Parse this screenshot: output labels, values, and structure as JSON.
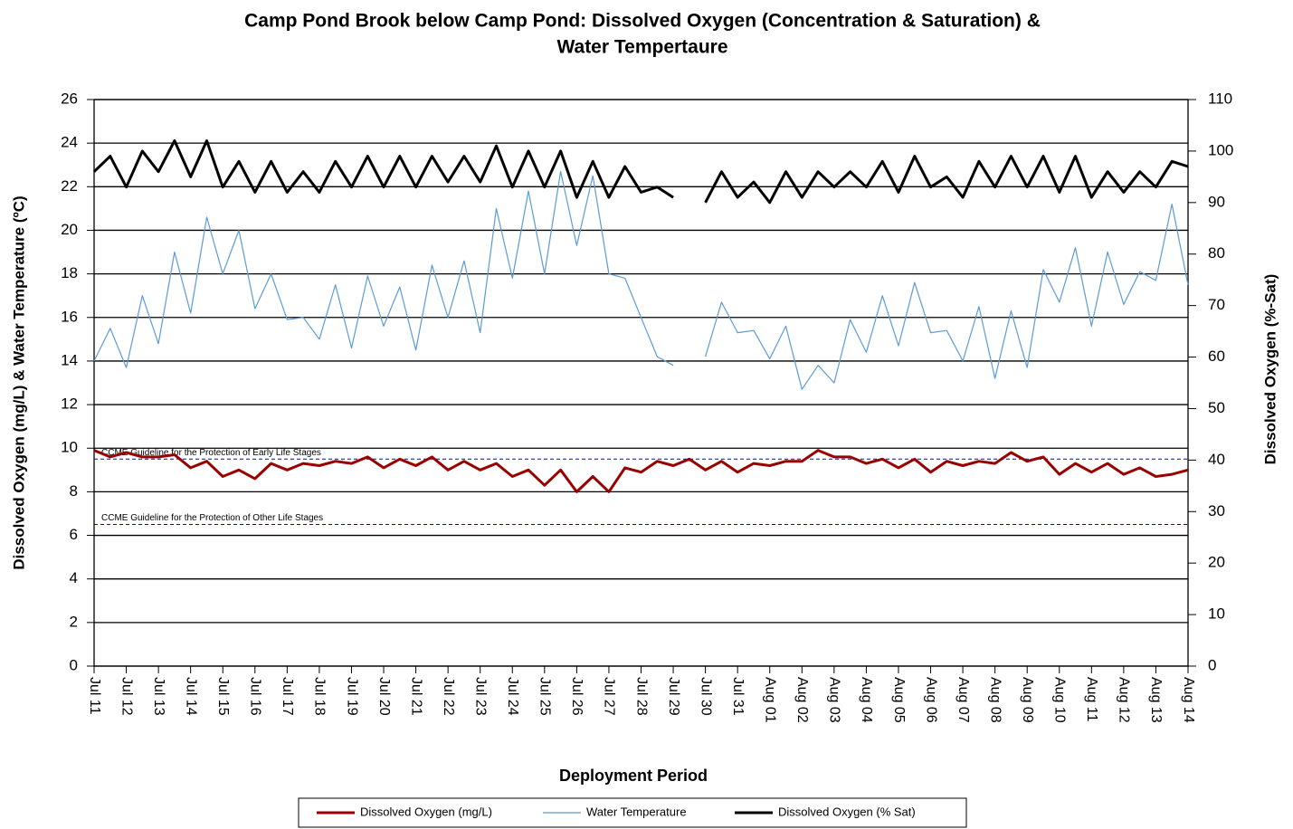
{
  "chart_data": {
    "type": "line",
    "title": [
      "Camp Pond Brook below Camp Pond: Dissolved Oxygen (Concentration & Saturation) &",
      "Water Tempertaure"
    ],
    "x_label": "Deployment Period",
    "y_label": "Dissolved  Oxygen (mg/L) & Water Temperature (ºC)",
    "y2_label": "Dissolved  Oxygen (%-Sat)",
    "categories": [
      "Jul 11",
      null,
      "Jul 12",
      null,
      "Jul 13",
      null,
      "Jul 14",
      null,
      "Jul 15",
      null,
      "Jul 16",
      null,
      "Jul 17",
      null,
      "Jul 18",
      null,
      "Jul 19",
      null,
      "Jul 20",
      null,
      "Jul 21",
      null,
      "Jul 22",
      null,
      "Jul 23",
      null,
      "Jul 24",
      null,
      "Jul 25",
      null,
      "Jul 26",
      null,
      "Jul 27",
      null,
      "Jul 28",
      null,
      "Jul 29",
      null,
      "Jul 30",
      null,
      "Jul 31",
      null,
      "Aug 01",
      null,
      "Aug 02",
      null,
      "Aug 03",
      null,
      "Aug 04",
      null,
      "Aug 05",
      null,
      "Aug 06",
      null,
      "Aug 07",
      null,
      "Aug 08",
      null,
      "Aug 09",
      null,
      "Aug 10",
      null,
      "Aug 11",
      null,
      "Aug 12",
      null,
      "Aug 13",
      null,
      "Aug 14"
    ],
    "series": [
      {
        "name": "Dissolved Oxygen (mg/L)",
        "color": "#990000",
        "width": 3,
        "values": [
          9.9,
          9.6,
          9.8,
          9.6,
          9.6,
          9.7,
          9.1,
          9.4,
          8.7,
          9.0,
          8.6,
          9.3,
          9.0,
          9.3,
          9.2,
          9.4,
          9.3,
          9.6,
          9.1,
          9.5,
          9.2,
          9.6,
          9.0,
          9.4,
          9.0,
          9.3,
          8.7,
          9.0,
          8.3,
          9.0,
          8.0,
          8.7,
          8.0,
          9.1,
          8.9,
          9.4,
          9.2,
          9.5,
          9.0,
          9.4,
          8.9,
          9.3,
          9.2,
          9.4,
          9.4,
          9.9,
          9.6,
          9.6,
          9.3,
          9.5,
          9.1,
          9.5,
          8.9,
          9.4,
          9.2,
          9.4,
          9.3,
          9.8,
          9.4,
          9.6,
          8.8,
          9.3,
          8.9,
          9.3,
          8.8,
          9.1,
          8.7,
          8.8,
          9.0
        ]
      },
      {
        "name": "Water Temperature",
        "color": "#5b9bd5",
        "width": 1.2,
        "values": [
          14,
          15.5,
          13.7,
          17,
          14.8,
          19,
          16.2,
          20.6,
          18,
          20,
          16.4,
          18,
          15.9,
          16,
          15,
          17.5,
          14.6,
          17.9,
          15.6,
          17.4,
          14.5,
          18.4,
          16,
          18.6,
          15.3,
          21,
          17.8,
          21.8,
          18,
          22.7,
          19.3,
          22.5,
          18,
          17.8,
          16,
          14.2,
          13.8,
          null,
          14.2,
          16.7,
          15.3,
          15.4,
          14.1,
          15.6,
          12.7,
          13.8,
          13,
          15.9,
          14.4,
          17,
          14.7,
          17.6,
          15.3,
          15.4,
          14,
          16.5,
          13.2,
          16.3,
          13.7,
          18.2,
          16.7,
          19.2,
          15.6,
          19,
          16.6,
          18.1,
          17.7,
          21.2,
          17.5
        ]
      },
      {
        "name": "Dissolved Oxygen (% Sat)",
        "color": "#000000",
        "width": 3,
        "axis": "y2",
        "values": [
          96,
          99,
          93,
          100,
          96,
          102,
          95,
          102,
          93,
          98,
          92,
          98,
          92,
          96,
          92,
          98,
          93,
          99,
          93,
          99,
          93,
          99,
          94,
          99,
          94,
          101,
          93,
          100,
          93,
          100,
          91,
          98,
          91,
          97,
          92,
          93,
          91,
          null,
          90,
          96,
          91,
          94,
          90,
          96,
          91,
          96,
          93,
          96,
          93,
          98,
          92,
          99,
          93,
          95,
          91,
          98,
          93,
          99,
          93,
          99,
          92,
          99,
          91,
          96,
          92,
          96,
          93,
          98,
          97
        ]
      }
    ],
    "ylim": [
      0,
      26
    ],
    "yticks": [
      0,
      2,
      4,
      6,
      8,
      10,
      12,
      14,
      16,
      18,
      20,
      22,
      24,
      26
    ],
    "y2lim": [
      0,
      110
    ],
    "y2ticks": [
      0,
      10,
      20,
      30,
      40,
      50,
      60,
      70,
      80,
      90,
      100,
      110
    ],
    "grid": true,
    "reference_lines": [
      {
        "value": 9.5,
        "label": "CCME Guideline for the Protection of Early Life Stages",
        "color": "#0000ff"
      },
      {
        "value": 6.5,
        "label": "CCME Guideline for the Protection of Other Life Stages",
        "color": "#0000ff"
      }
    ],
    "legend": "bottom"
  }
}
